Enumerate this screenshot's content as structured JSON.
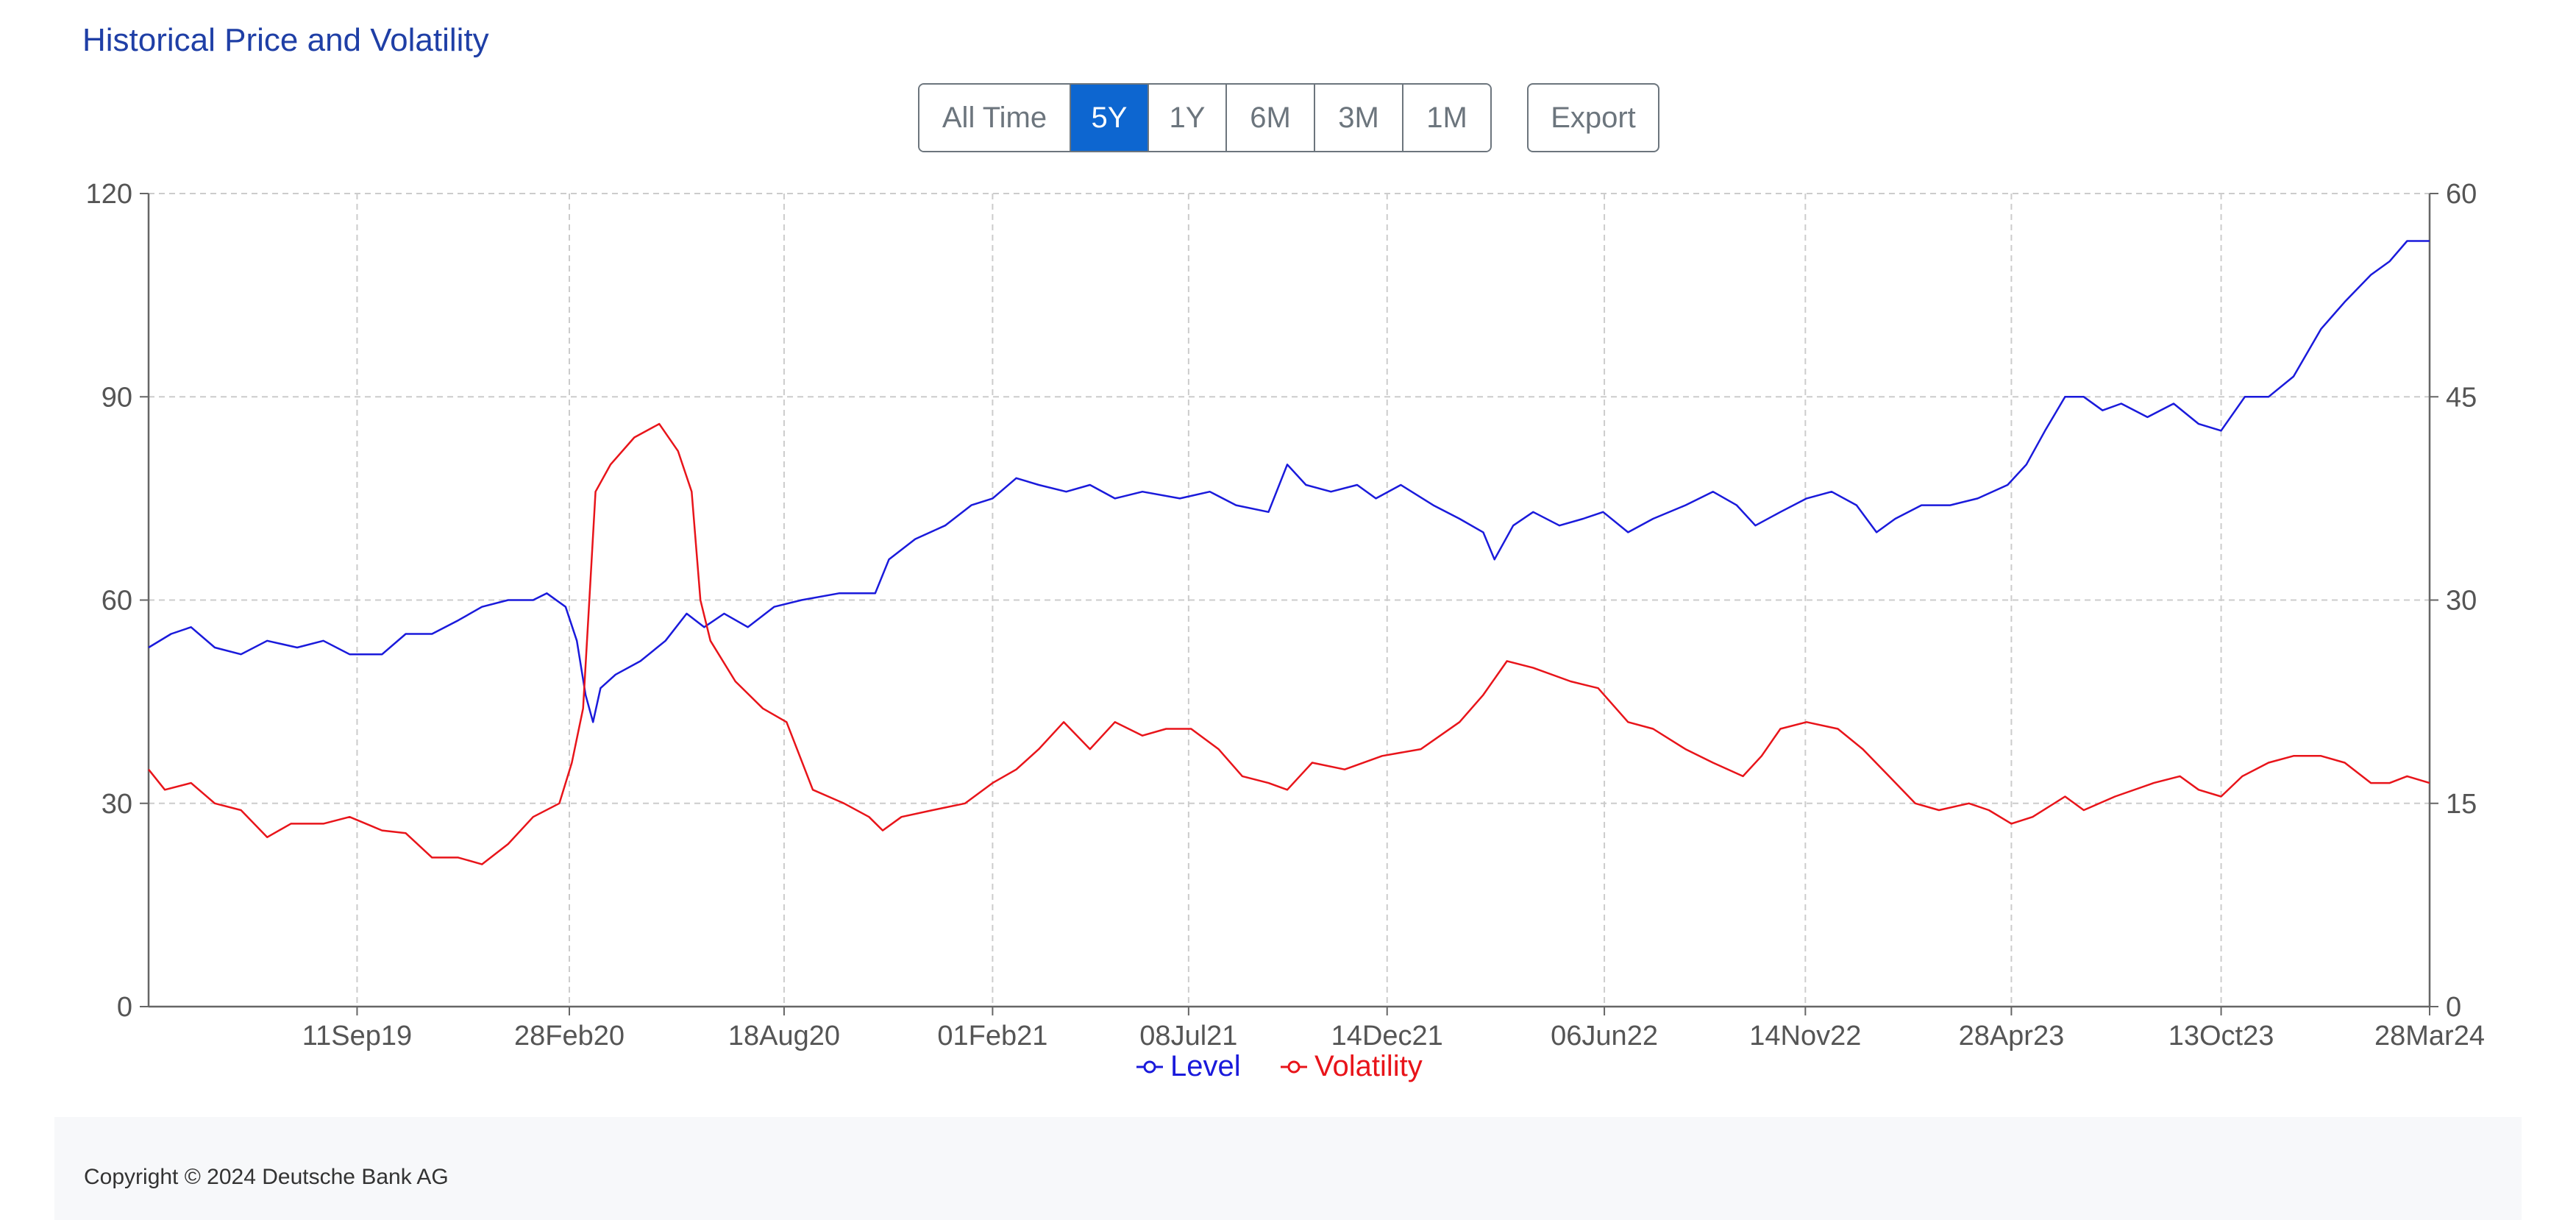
{
  "page": {
    "title": "Historical Price and Volatility",
    "range_buttons": [
      {
        "label": "All Time",
        "active": false
      },
      {
        "label": "5Y",
        "active": true
      },
      {
        "label": "1Y",
        "active": false
      },
      {
        "label": "6M",
        "active": false
      },
      {
        "label": "3M",
        "active": false
      },
      {
        "label": "1M",
        "active": false
      }
    ],
    "export_label": "Export",
    "footer_text": "Copyright © 2024 Deutsche Bank AG"
  },
  "colors": {
    "level": "#1a1adb",
    "volatility": "#e8141a",
    "grid": "#cccccc",
    "axis": "#666666"
  },
  "chart_data": {
    "type": "line",
    "title": "",
    "grid": true,
    "legend_position": "bottom-center",
    "x_range": [
      "2019-03-28",
      "2024-03-28"
    ],
    "x_ticks": [
      {
        "date": "2019-09-11",
        "label": "11Sep19"
      },
      {
        "date": "2020-02-28",
        "label": "28Feb20"
      },
      {
        "date": "2020-08-18",
        "label": "18Aug20"
      },
      {
        "date": "2021-02-01",
        "label": "01Feb21"
      },
      {
        "date": "2021-07-08",
        "label": "08Jul21"
      },
      {
        "date": "2021-12-14",
        "label": "14Dec21"
      },
      {
        "date": "2022-06-06",
        "label": "06Jun22"
      },
      {
        "date": "2022-11-14",
        "label": "14Nov22"
      },
      {
        "date": "2023-04-28",
        "label": "28Apr23"
      },
      {
        "date": "2023-10-13",
        "label": "13Oct23"
      },
      {
        "date": "2024-03-28",
        "label": "28Mar24"
      }
    ],
    "y_left": {
      "range": [
        0,
        120
      ],
      "ticks": [
        0,
        30,
        60,
        90,
        120
      ]
    },
    "y_right": {
      "range": [
        0,
        60
      ],
      "ticks": [
        0,
        15,
        30,
        45,
        60
      ]
    },
    "series": [
      {
        "name": "Level",
        "axis": "left",
        "points": [
          [
            "2019-03-28",
            53
          ],
          [
            "2019-04-15",
            55
          ],
          [
            "2019-05-01",
            56
          ],
          [
            "2019-05-20",
            53
          ],
          [
            "2019-06-10",
            52
          ],
          [
            "2019-07-01",
            54
          ],
          [
            "2019-07-25",
            53
          ],
          [
            "2019-08-15",
            54
          ],
          [
            "2019-09-05",
            52
          ],
          [
            "2019-10-01",
            52
          ],
          [
            "2019-10-20",
            55
          ],
          [
            "2019-11-10",
            55
          ],
          [
            "2019-12-01",
            57
          ],
          [
            "2019-12-20",
            59
          ],
          [
            "2020-01-10",
            60
          ],
          [
            "2020-01-30",
            60
          ],
          [
            "2020-02-10",
            61
          ],
          [
            "2020-02-25",
            59
          ],
          [
            "2020-03-05",
            54
          ],
          [
            "2020-03-12",
            46
          ],
          [
            "2020-03-18",
            42
          ],
          [
            "2020-03-24",
            47
          ],
          [
            "2020-04-05",
            49
          ],
          [
            "2020-04-25",
            51
          ],
          [
            "2020-05-15",
            54
          ],
          [
            "2020-06-01",
            58
          ],
          [
            "2020-06-15",
            56
          ],
          [
            "2020-07-01",
            58
          ],
          [
            "2020-07-20",
            56
          ],
          [
            "2020-08-10",
            59
          ],
          [
            "2020-09-01",
            60
          ],
          [
            "2020-10-01",
            61
          ],
          [
            "2020-10-30",
            61
          ],
          [
            "2020-11-10",
            66
          ],
          [
            "2020-12-01",
            69
          ],
          [
            "2020-12-25",
            71
          ],
          [
            "2021-01-15",
            74
          ],
          [
            "2021-02-01",
            75
          ],
          [
            "2021-02-20",
            78
          ],
          [
            "2021-03-10",
            77
          ],
          [
            "2021-04-01",
            76
          ],
          [
            "2021-04-20",
            77
          ],
          [
            "2021-05-10",
            75
          ],
          [
            "2021-06-01",
            76
          ],
          [
            "2021-07-01",
            75
          ],
          [
            "2021-07-25",
            76
          ],
          [
            "2021-08-15",
            74
          ],
          [
            "2021-09-10",
            73
          ],
          [
            "2021-09-25",
            80
          ],
          [
            "2021-10-10",
            77
          ],
          [
            "2021-10-30",
            76
          ],
          [
            "2021-11-20",
            77
          ],
          [
            "2021-12-05",
            75
          ],
          [
            "2021-12-25",
            77
          ],
          [
            "2022-01-20",
            74
          ],
          [
            "2022-02-10",
            72
          ],
          [
            "2022-03-01",
            70
          ],
          [
            "2022-03-10",
            66
          ],
          [
            "2022-03-25",
            71
          ],
          [
            "2022-04-10",
            73
          ],
          [
            "2022-05-01",
            71
          ],
          [
            "2022-05-20",
            72
          ],
          [
            "2022-06-05",
            73
          ],
          [
            "2022-06-25",
            70
          ],
          [
            "2022-07-15",
            72
          ],
          [
            "2022-08-10",
            74
          ],
          [
            "2022-09-01",
            76
          ],
          [
            "2022-09-20",
            74
          ],
          [
            "2022-10-05",
            71
          ],
          [
            "2022-10-25",
            73
          ],
          [
            "2022-11-15",
            75
          ],
          [
            "2022-12-05",
            76
          ],
          [
            "2022-12-25",
            74
          ],
          [
            "2023-01-10",
            70
          ],
          [
            "2023-01-25",
            72
          ],
          [
            "2023-02-15",
            74
          ],
          [
            "2023-03-10",
            74
          ],
          [
            "2023-04-01",
            75
          ],
          [
            "2023-04-25",
            77
          ],
          [
            "2023-05-10",
            80
          ],
          [
            "2023-05-25",
            85
          ],
          [
            "2023-06-10",
            90
          ],
          [
            "2023-06-25",
            90
          ],
          [
            "2023-07-10",
            88
          ],
          [
            "2023-07-25",
            89
          ],
          [
            "2023-08-15",
            87
          ],
          [
            "2023-09-05",
            89
          ],
          [
            "2023-09-25",
            86
          ],
          [
            "2023-10-13",
            85
          ],
          [
            "2023-11-01",
            90
          ],
          [
            "2023-11-20",
            90
          ],
          [
            "2023-12-10",
            93
          ],
          [
            "2024-01-01",
            100
          ],
          [
            "2024-01-20",
            104
          ],
          [
            "2024-02-10",
            108
          ],
          [
            "2024-02-25",
            110
          ],
          [
            "2024-03-10",
            113
          ],
          [
            "2024-03-28",
            113
          ]
        ]
      },
      {
        "name": "Volatility",
        "axis": "right",
        "points": [
          [
            "2019-03-28",
            17.5
          ],
          [
            "2019-04-10",
            16
          ],
          [
            "2019-05-01",
            16.5
          ],
          [
            "2019-05-20",
            15
          ],
          [
            "2019-06-10",
            14.5
          ],
          [
            "2019-07-01",
            12.5
          ],
          [
            "2019-07-20",
            13.5
          ],
          [
            "2019-08-15",
            13.5
          ],
          [
            "2019-09-05",
            14
          ],
          [
            "2019-10-01",
            13
          ],
          [
            "2019-10-20",
            12.8
          ],
          [
            "2019-11-10",
            11
          ],
          [
            "2019-12-01",
            11
          ],
          [
            "2019-12-20",
            10.5
          ],
          [
            "2020-01-10",
            12
          ],
          [
            "2020-01-30",
            14
          ],
          [
            "2020-02-20",
            15
          ],
          [
            "2020-03-01",
            18
          ],
          [
            "2020-03-10",
            22
          ],
          [
            "2020-03-15",
            30
          ],
          [
            "2020-03-20",
            38
          ],
          [
            "2020-04-01",
            40
          ],
          [
            "2020-04-20",
            42
          ],
          [
            "2020-05-10",
            43
          ],
          [
            "2020-05-25",
            41
          ],
          [
            "2020-06-05",
            38
          ],
          [
            "2020-06-12",
            30
          ],
          [
            "2020-06-20",
            27
          ],
          [
            "2020-07-10",
            24
          ],
          [
            "2020-08-01",
            22
          ],
          [
            "2020-08-20",
            21
          ],
          [
            "2020-09-10",
            16
          ],
          [
            "2020-10-05",
            15
          ],
          [
            "2020-10-25",
            14
          ],
          [
            "2020-11-05",
            13
          ],
          [
            "2020-11-20",
            14
          ],
          [
            "2020-12-15",
            14.5
          ],
          [
            "2021-01-10",
            15
          ],
          [
            "2021-02-01",
            16.5
          ],
          [
            "2021-02-20",
            17.5
          ],
          [
            "2021-03-10",
            19
          ],
          [
            "2021-03-30",
            21
          ],
          [
            "2021-04-20",
            19
          ],
          [
            "2021-05-10",
            21
          ],
          [
            "2021-06-01",
            20
          ],
          [
            "2021-06-20",
            20.5
          ],
          [
            "2021-07-10",
            20.5
          ],
          [
            "2021-08-01",
            19
          ],
          [
            "2021-08-20",
            17
          ],
          [
            "2021-09-10",
            16.5
          ],
          [
            "2021-09-25",
            16
          ],
          [
            "2021-10-15",
            18
          ],
          [
            "2021-11-10",
            17.5
          ],
          [
            "2021-12-10",
            18.5
          ],
          [
            "2022-01-10",
            19
          ],
          [
            "2022-02-10",
            21
          ],
          [
            "2022-03-01",
            23
          ],
          [
            "2022-03-20",
            25.5
          ],
          [
            "2022-04-10",
            25
          ],
          [
            "2022-05-10",
            24
          ],
          [
            "2022-06-01",
            23.5
          ],
          [
            "2022-06-25",
            21
          ],
          [
            "2022-07-15",
            20.5
          ],
          [
            "2022-08-10",
            19
          ],
          [
            "2022-09-01",
            18
          ],
          [
            "2022-09-25",
            17
          ],
          [
            "2022-10-10",
            18.5
          ],
          [
            "2022-10-25",
            20.5
          ],
          [
            "2022-11-15",
            21
          ],
          [
            "2022-12-10",
            20.5
          ],
          [
            "2022-12-30",
            19
          ],
          [
            "2023-01-20",
            17
          ],
          [
            "2023-02-10",
            15
          ],
          [
            "2023-03-01",
            14.5
          ],
          [
            "2023-03-25",
            15
          ],
          [
            "2023-04-10",
            14.5
          ],
          [
            "2023-04-28",
            13.5
          ],
          [
            "2023-05-15",
            14
          ],
          [
            "2023-06-10",
            15.5
          ],
          [
            "2023-06-25",
            14.5
          ],
          [
            "2023-07-20",
            15.5
          ],
          [
            "2023-08-20",
            16.5
          ],
          [
            "2023-09-10",
            17
          ],
          [
            "2023-09-25",
            16
          ],
          [
            "2023-10-13",
            15.5
          ],
          [
            "2023-10-30",
            17
          ],
          [
            "2023-11-20",
            18
          ],
          [
            "2023-12-10",
            18.5
          ],
          [
            "2024-01-01",
            18.5
          ],
          [
            "2024-01-20",
            18
          ],
          [
            "2024-02-10",
            16.5
          ],
          [
            "2024-02-25",
            16.5
          ],
          [
            "2024-03-10",
            17
          ],
          [
            "2024-03-28",
            16.5
          ]
        ]
      }
    ]
  }
}
